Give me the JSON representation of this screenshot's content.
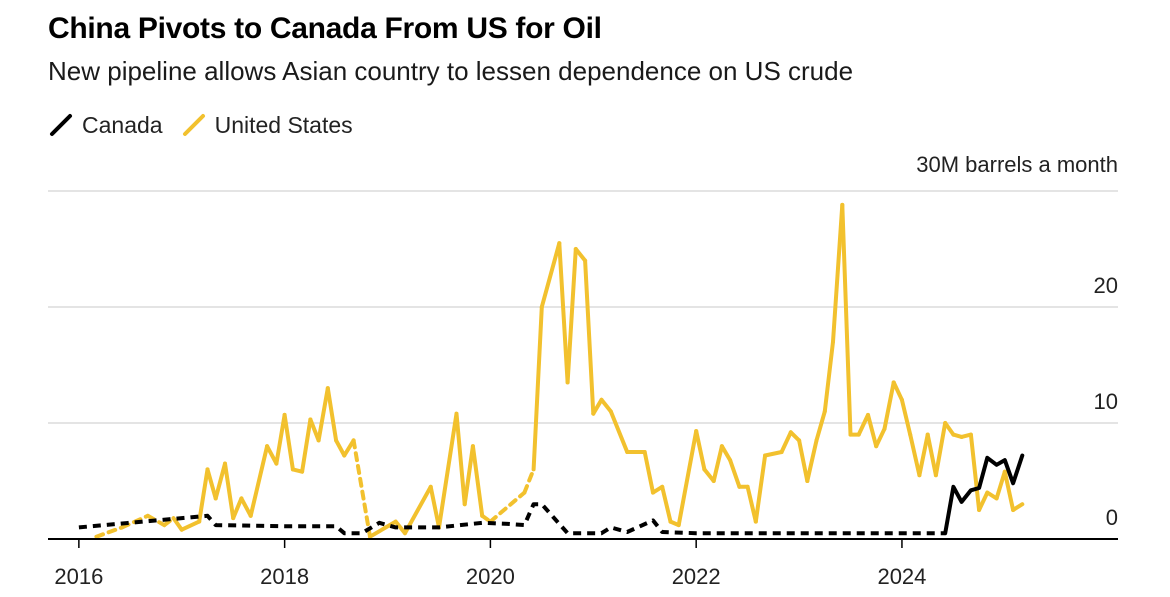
{
  "chart_data": {
    "type": "line",
    "title": "China Pivots to Canada From US for Oil",
    "subtitle": "New pipeline allows Asian country to lessen dependence on US crude",
    "unit_label": "30M barrels a month",
    "xlabel": "",
    "ylabel": "",
    "xlim": [
      2015.7,
      2026.1
    ],
    "ylim": [
      0,
      30
    ],
    "y_ticks": [
      0,
      10,
      20
    ],
    "y_tick_labels": [
      "0",
      "10",
      "20"
    ],
    "x_ticks": [
      2016,
      2018,
      2020,
      2022,
      2024
    ],
    "x_tick_labels": [
      "2016",
      "2018",
      "2020",
      "2022",
      "2024"
    ],
    "grid": true,
    "legend_position": "top-left",
    "series": [
      {
        "name": "Canada",
        "color": "#000000",
        "style": "dashed-then-solid",
        "points": [
          [
            2016.0,
            1.0
          ],
          [
            2017.25,
            2.0
          ],
          [
            2017.33,
            1.2
          ],
          [
            2018.0,
            1.1
          ],
          [
            2018.5,
            1.1
          ],
          [
            2018.58,
            0.5
          ],
          [
            2018.75,
            0.5
          ],
          [
            2018.92,
            1.4
          ],
          [
            2019.08,
            1.0
          ],
          [
            2019.5,
            1.0
          ],
          [
            2019.92,
            1.4
          ],
          [
            2020.17,
            1.3
          ],
          [
            2020.33,
            1.2
          ],
          [
            2020.42,
            3.0
          ],
          [
            2020.5,
            3.0
          ],
          [
            2020.75,
            0.5
          ],
          [
            2021.08,
            0.5
          ],
          [
            2021.17,
            1.0
          ],
          [
            2021.33,
            0.6
          ],
          [
            2021.58,
            1.6
          ],
          [
            2021.67,
            0.6
          ],
          [
            2022.0,
            0.5
          ],
          [
            2024.33,
            0.5
          ],
          [
            2024.42,
            0.5
          ],
          [
            2024.5,
            4.5
          ],
          [
            2024.58,
            3.2
          ],
          [
            2024.67,
            4.2
          ],
          [
            2024.75,
            4.4
          ],
          [
            2024.83,
            7.0
          ],
          [
            2024.92,
            6.4
          ],
          [
            2025.0,
            6.8
          ],
          [
            2025.08,
            4.8
          ],
          [
            2025.17,
            7.2
          ]
        ]
      },
      {
        "name": "United States",
        "color": "#f2c12e",
        "style": "solid-with-dashed-gaps",
        "points": [
          [
            2016.17,
            0.2
          ],
          [
            2016.42,
            1.0
          ],
          [
            2016.67,
            2.0
          ],
          [
            2016.83,
            1.2
          ],
          [
            2016.92,
            1.8
          ],
          [
            2017.0,
            0.8
          ],
          [
            2017.17,
            1.5
          ],
          [
            2017.25,
            6.0
          ],
          [
            2017.33,
            3.5
          ],
          [
            2017.42,
            6.5
          ],
          [
            2017.5,
            1.8
          ],
          [
            2017.58,
            3.5
          ],
          [
            2017.67,
            2.0
          ],
          [
            2017.83,
            8.0
          ],
          [
            2017.92,
            6.5
          ],
          [
            2018.0,
            10.7
          ],
          [
            2018.08,
            6.0
          ],
          [
            2018.17,
            5.8
          ],
          [
            2018.25,
            10.3
          ],
          [
            2018.33,
            8.5
          ],
          [
            2018.42,
            13.0
          ],
          [
            2018.5,
            8.5
          ],
          [
            2018.58,
            7.2
          ],
          [
            2018.67,
            8.5
          ],
          [
            2018.83,
            0.2
          ],
          [
            2019.08,
            1.5
          ],
          [
            2019.17,
            0.5
          ],
          [
            2019.42,
            4.5
          ],
          [
            2019.5,
            1.0
          ],
          [
            2019.67,
            10.8
          ],
          [
            2019.75,
            3.0
          ],
          [
            2019.83,
            8.0
          ],
          [
            2019.92,
            2.0
          ],
          [
            2020.0,
            1.5
          ],
          [
            2020.33,
            4.0
          ],
          [
            2020.42,
            6.0
          ],
          [
            2020.5,
            20.0
          ],
          [
            2020.67,
            25.5
          ],
          [
            2020.75,
            13.5
          ],
          [
            2020.83,
            25.0
          ],
          [
            2020.92,
            24.0
          ],
          [
            2021.0,
            10.8
          ],
          [
            2021.08,
            12.0
          ],
          [
            2021.17,
            11.0
          ],
          [
            2021.33,
            7.5
          ],
          [
            2021.5,
            7.5
          ],
          [
            2021.58,
            4.0
          ],
          [
            2021.67,
            4.5
          ],
          [
            2021.75,
            1.5
          ],
          [
            2021.83,
            1.2
          ],
          [
            2022.0,
            9.3
          ],
          [
            2022.08,
            6.0
          ],
          [
            2022.17,
            5.0
          ],
          [
            2022.25,
            8.0
          ],
          [
            2022.33,
            6.8
          ],
          [
            2022.42,
            4.5
          ],
          [
            2022.5,
            4.5
          ],
          [
            2022.58,
            1.5
          ],
          [
            2022.67,
            7.2
          ],
          [
            2022.83,
            7.5
          ],
          [
            2022.92,
            9.2
          ],
          [
            2023.0,
            8.5
          ],
          [
            2023.08,
            5.0
          ],
          [
            2023.17,
            8.5
          ],
          [
            2023.25,
            11.0
          ],
          [
            2023.33,
            17.0
          ],
          [
            2023.42,
            28.8
          ],
          [
            2023.5,
            9.0
          ],
          [
            2023.58,
            9.0
          ],
          [
            2023.67,
            10.7
          ],
          [
            2023.75,
            8.0
          ],
          [
            2023.83,
            9.5
          ],
          [
            2023.92,
            13.5
          ],
          [
            2024.0,
            12.0
          ],
          [
            2024.08,
            9.0
          ],
          [
            2024.17,
            5.5
          ],
          [
            2024.25,
            9.0
          ],
          [
            2024.33,
            5.5
          ],
          [
            2024.42,
            10.0
          ],
          [
            2024.5,
            9.0
          ],
          [
            2024.58,
            8.8
          ],
          [
            2024.67,
            9.0
          ],
          [
            2024.75,
            2.5
          ],
          [
            2024.83,
            4.0
          ],
          [
            2024.92,
            3.5
          ],
          [
            2025.0,
            5.8
          ],
          [
            2025.08,
            2.5
          ],
          [
            2025.17,
            3.0
          ]
        ],
        "dashed_segments": [
          [
            2016.17,
            2016.92
          ],
          [
            2018.67,
            2018.83
          ],
          [
            2019.92,
            2020.42
          ]
        ]
      }
    ]
  }
}
